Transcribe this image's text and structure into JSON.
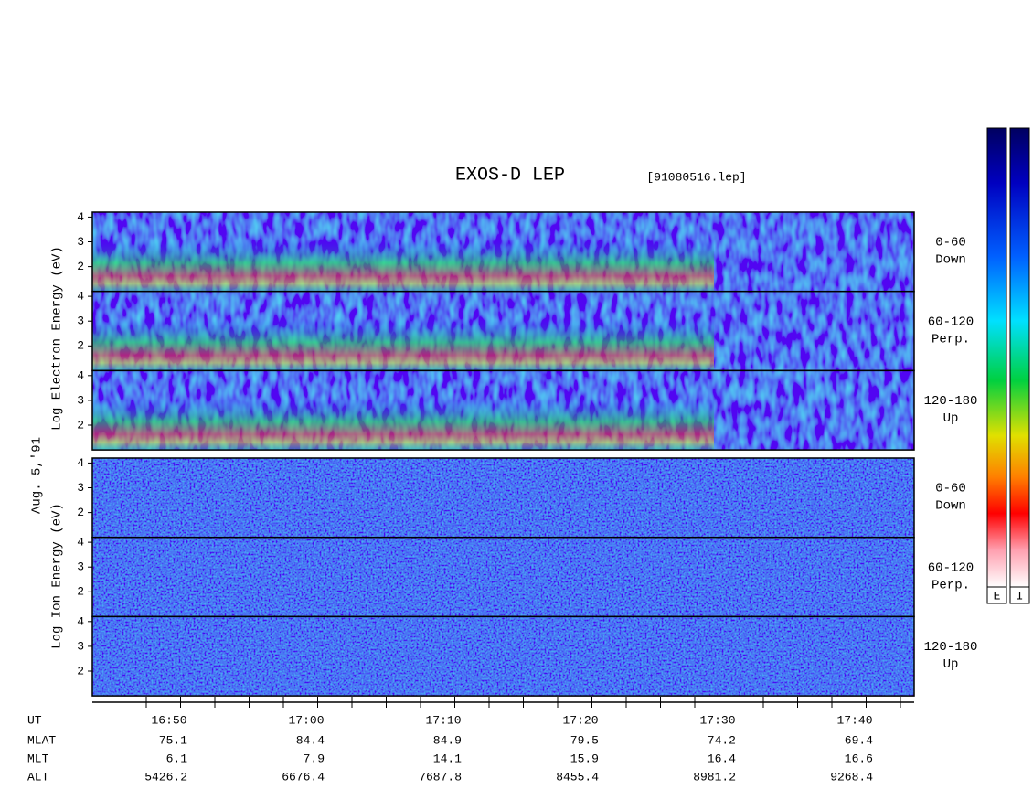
{
  "title": "EXOS-D LEP",
  "file": "[91080516.lep]",
  "date": "Aug. 5,'91",
  "electron_axis_label": "Log Electron Energy (eV)",
  "ion_axis_label": "Log Ion Energy (eV)",
  "ylim": [
    1,
    4.2
  ],
  "yticks": [
    2,
    3,
    4
  ],
  "panels": [
    {
      "range": "0-60",
      "direction": "Down"
    },
    {
      "range": "60-120",
      "direction": "Perp."
    },
    {
      "range": "120-180",
      "direction": "Up"
    },
    {
      "range": "0-60",
      "direction": "Down"
    },
    {
      "range": "60-120",
      "direction": "Perp."
    },
    {
      "range": "120-180",
      "direction": "Up"
    }
  ],
  "orbit": {
    "row_labels": [
      "UT",
      "MLAT",
      "MLT",
      "ALT"
    ],
    "UT": [
      "16:50",
      "17:00",
      "17:10",
      "17:20",
      "17:30",
      "17:40"
    ],
    "MLAT": [
      "75.1",
      "84.4",
      "84.9",
      "79.5",
      "74.2",
      "69.4"
    ],
    "MLT": [
      "6.1",
      "7.9",
      "14.1",
      "15.9",
      "16.4",
      "16.6"
    ],
    "ALT": [
      "5426.2",
      "6676.4",
      "7687.8",
      "8455.4",
      "8981.2",
      "9268.4"
    ]
  },
  "colorbar_labels": [
    "E",
    "I"
  ]
}
